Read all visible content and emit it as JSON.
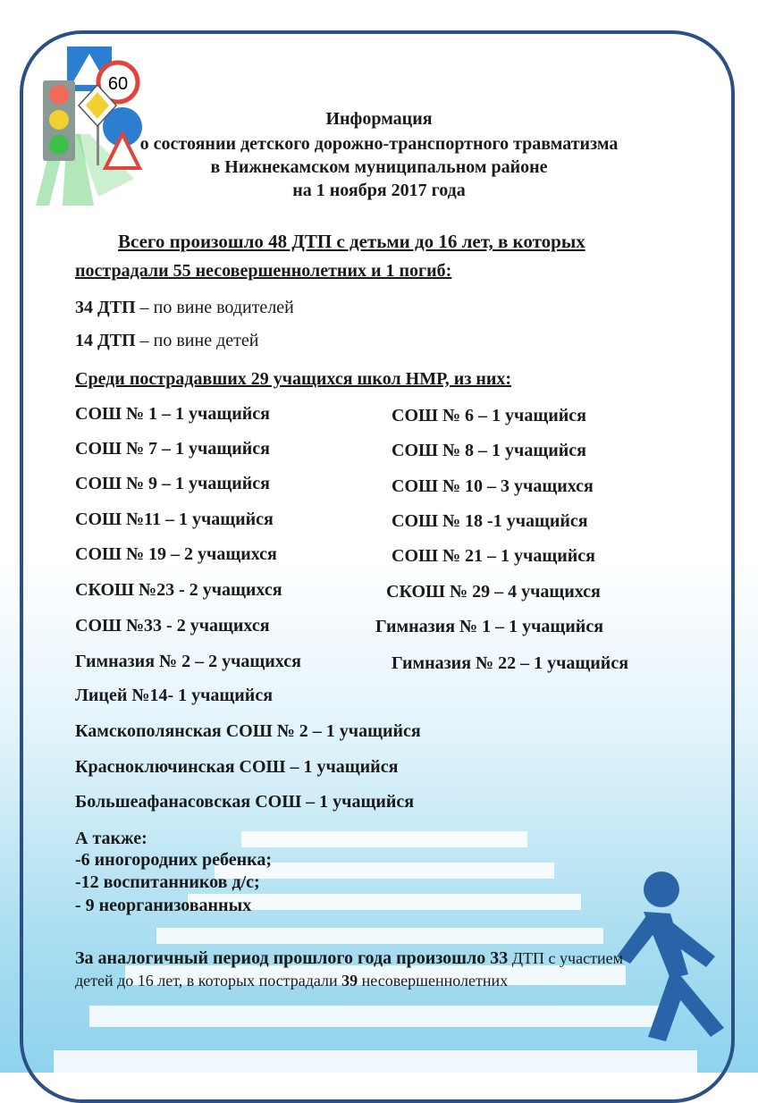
{
  "header": {
    "title": "Информация",
    "subtitle1": "о  состоянии детского дорожно-транспортного травматизма",
    "subtitle2": "в Нижнекамском муниципальном районе",
    "subtitle3": "на 1 ноября 2017 года"
  },
  "logo": {
    "speed_sign": "60"
  },
  "summary": {
    "line1": "Всего  произошло  48  ДТП  с  детьми  до  16  лет,  в  которых",
    "line2": "пострадали 55 несовершеннолетних и 1 погиб:",
    "drivers_num": "34 ДТП",
    "drivers_text": " – по вине водителей",
    "children_num": "14 ДТП",
    "children_text": " – по вине детей"
  },
  "schools_heading": "Среди пострадавших 29 учащихся школ НМР, из них:",
  "schools": [
    {
      "left": "СОШ № 1 – 1 учащийся",
      "right": "СОШ № 6 – 1 учащийся"
    },
    {
      "left": "СОШ № 7 – 1 учащийся",
      "right": "СОШ № 8 – 1 учащийся"
    },
    {
      "left": "СОШ № 9 – 1 учащийся",
      "right": "СОШ № 10 – 3 учащихся"
    },
    {
      "left": "СОШ №11 – 1 учащийся",
      "right": "СОШ № 18 -1 учащийся"
    },
    {
      "left": "СОШ № 19 – 2 учащихся",
      "right": "СОШ № 21 – 1 учащийся"
    },
    {
      "left": "СКОШ №23 - 2 учащихся",
      "right": "СКОШ № 29 – 4 учащихся"
    },
    {
      "left": "СОШ №33 - 2 учащихся",
      "right": "Гимназия № 1 – 1 учащийся"
    },
    {
      "left": "Гимназия № 2 – 2  учащихся",
      "right": "Гимназия № 22 – 1 учащийся"
    }
  ],
  "schools_single": [
    "Лицей №14- 1 учащийся",
    "Камскополянская СОШ № 2 – 1 учащийся",
    "Красноключинская СОШ – 1 учащийся",
    "Большеафанасовская СОШ – 1 учащийся"
  ],
  "also": {
    "heading": "А также:",
    "items": [
      "-6  иногородних ребенка;",
      "-12 воспитанников д/с;",
      "- 9 неорганизованных"
    ]
  },
  "comparison": {
    "bold1": "За аналогичный период прошлого года произошло 33",
    "normal1": " ДТП с участием",
    "normal2a": "детей до 16 лет, в которых пострадали ",
    "bold2": "39",
    "normal2b": " несовершеннолетних"
  }
}
